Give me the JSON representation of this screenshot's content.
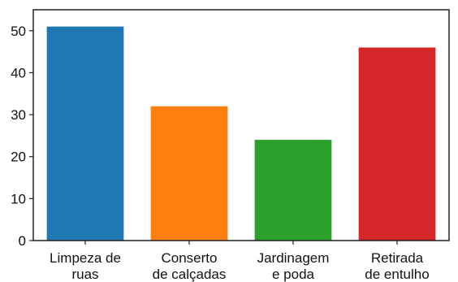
{
  "chart_data": {
    "type": "bar",
    "categories": [
      [
        "Limpeza de",
        "ruas"
      ],
      [
        "Conserto",
        "de calçadas"
      ],
      [
        "Jardinagem",
        "e poda"
      ],
      [
        "Retirada",
        "de entulho"
      ]
    ],
    "values": [
      51,
      32,
      24,
      46
    ],
    "colors": [
      "#1f77b4",
      "#ff7f0e",
      "#2ca02c",
      "#d62728"
    ],
    "yticks": [
      0,
      10,
      20,
      30,
      40,
      50
    ],
    "ylim": [
      0,
      55
    ],
    "title": "",
    "xlabel": "",
    "ylabel": "",
    "grid": false,
    "legend": "none"
  }
}
